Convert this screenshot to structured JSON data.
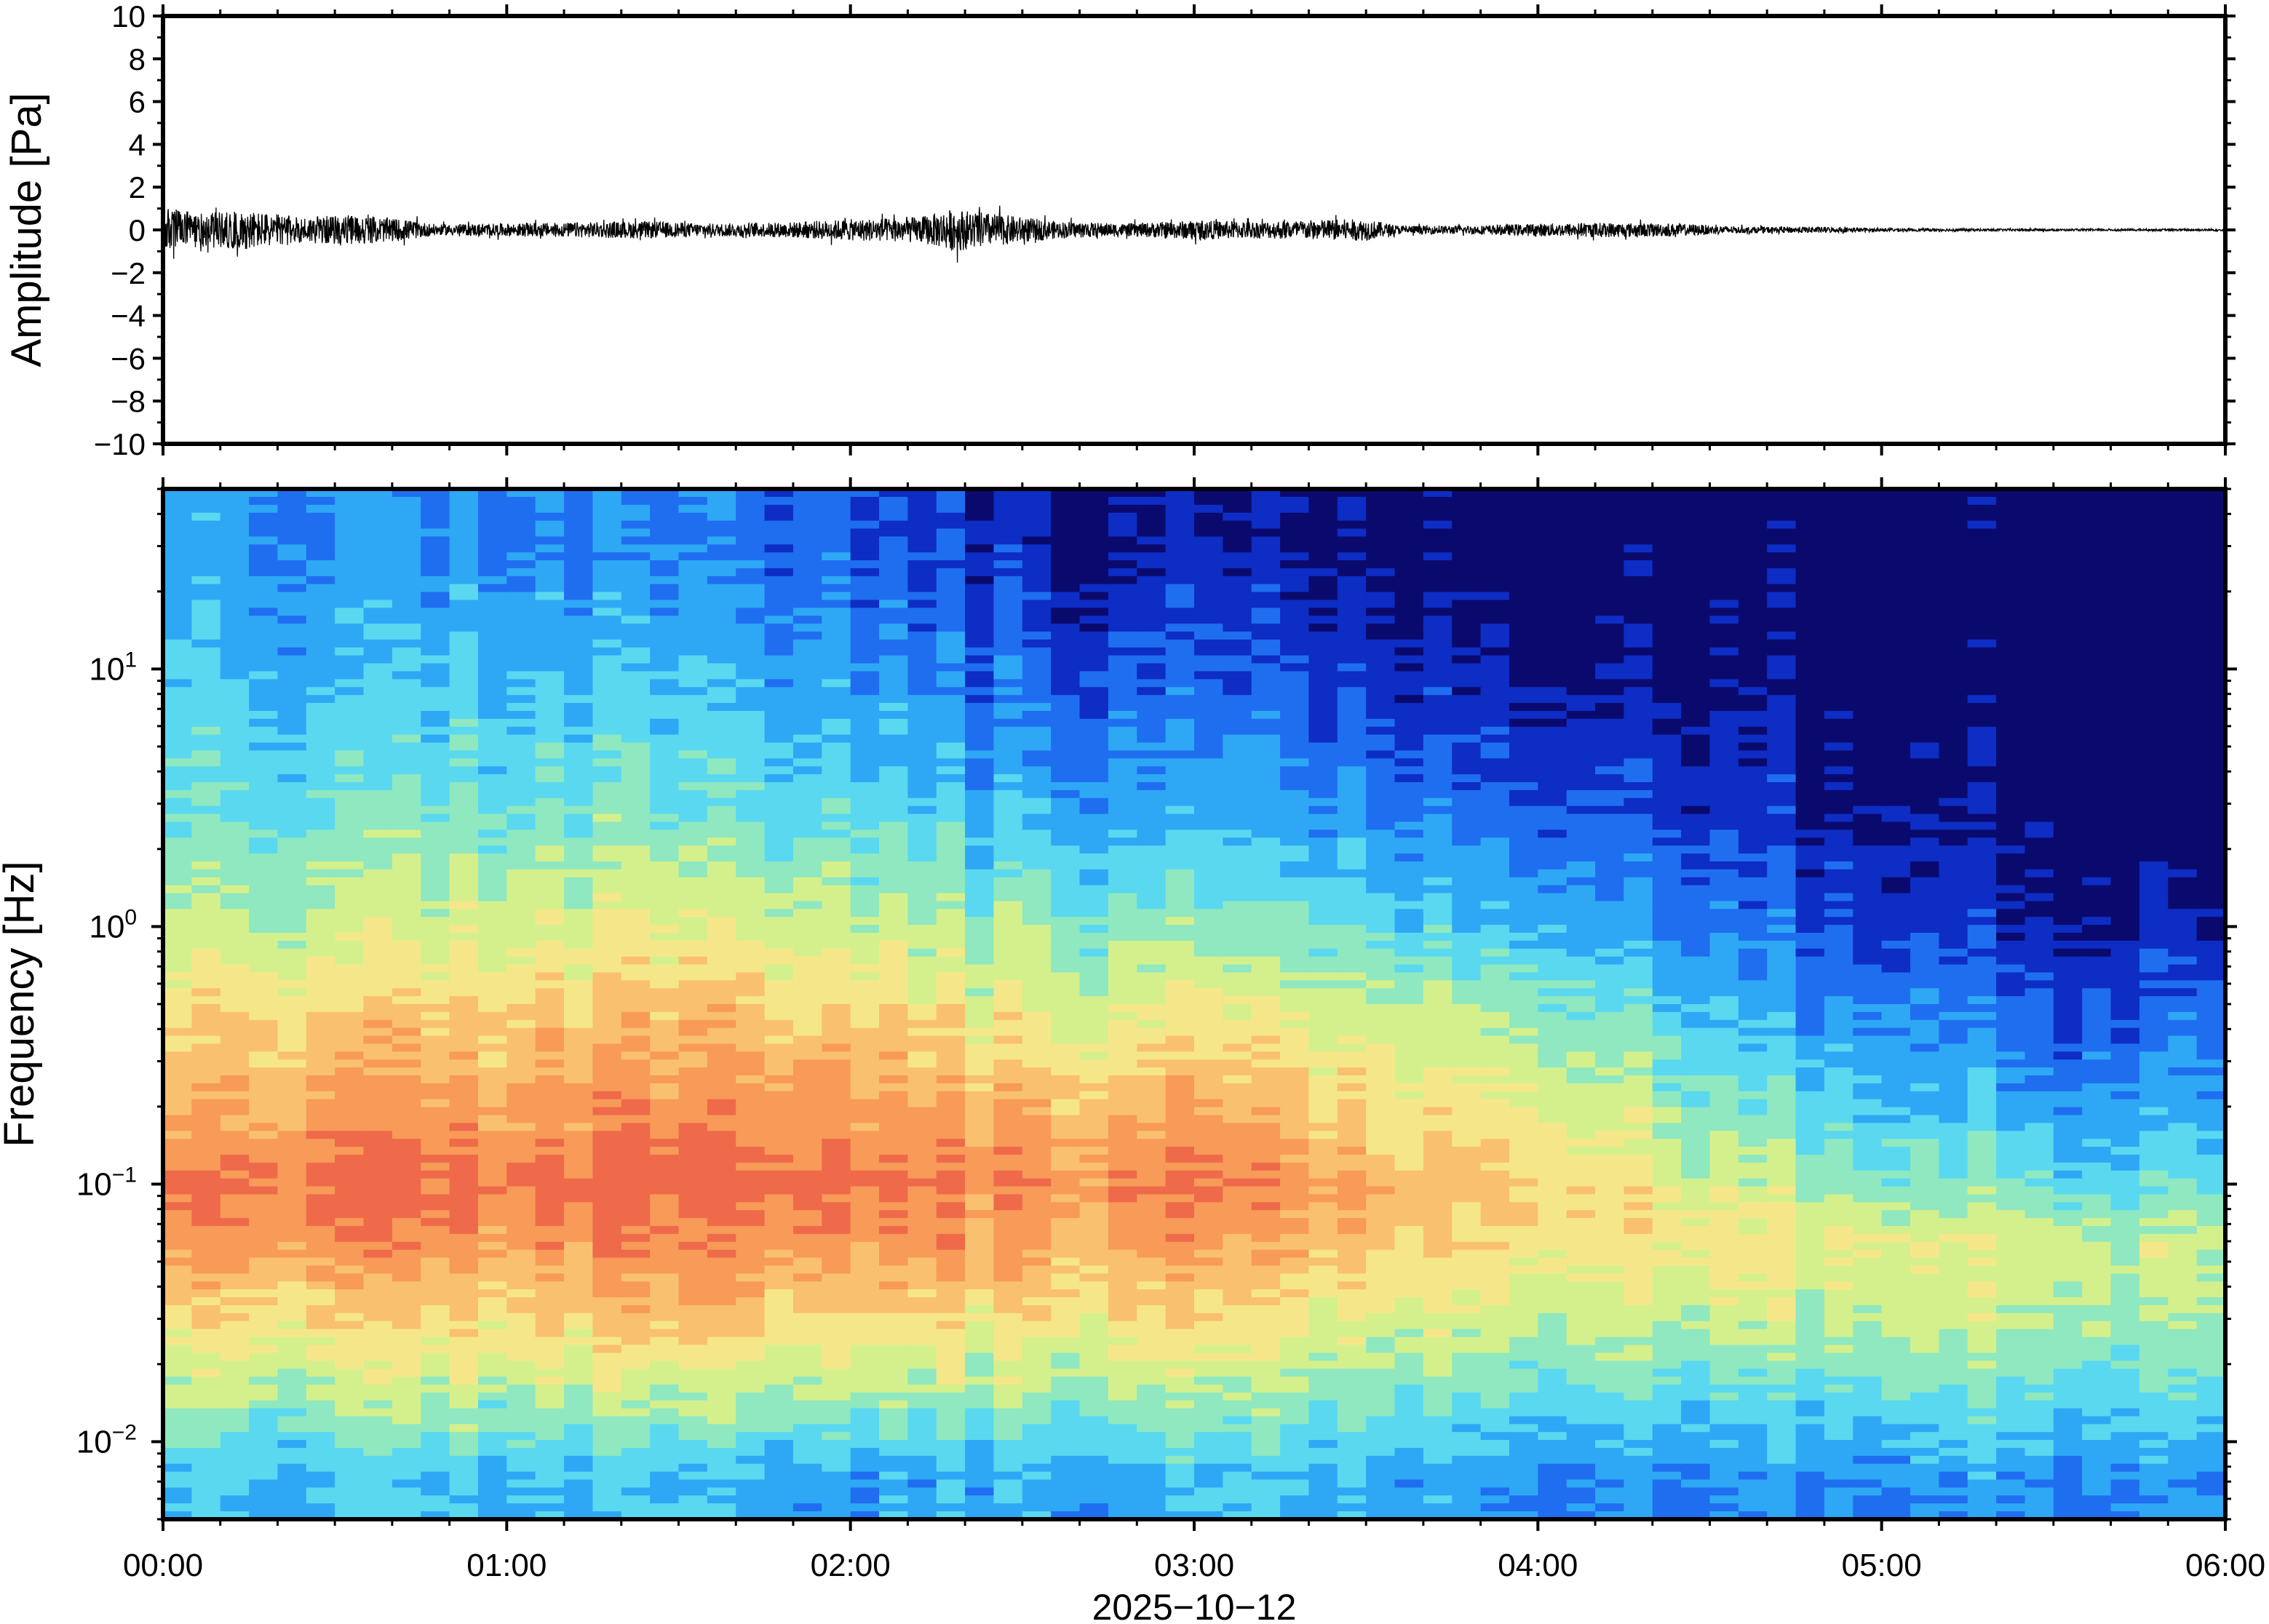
{
  "chart_data": [
    {
      "type": "line",
      "title": "",
      "xlabel": "",
      "ylabel": "Amplitude [Pa]",
      "ylim": [
        -10,
        10
      ],
      "yticks": [
        10,
        8,
        6,
        4,
        2,
        0,
        -2,
        -4,
        -6,
        -8,
        -10
      ],
      "ytick_labels": [
        "10",
        "8",
        "6",
        "4",
        "2",
        "0",
        "−2",
        "−4",
        "−6",
        "−8",
        "−10"
      ],
      "xlim_hours": [
        0,
        6
      ],
      "grid": false,
      "series": [
        {
          "color": "#000000",
          "envelope_hours": [
            0,
            0.1,
            0.25,
            0.4,
            0.55,
            0.7,
            0.8,
            1.0,
            1.2,
            1.4,
            1.6,
            1.8,
            2.0,
            2.2,
            2.3,
            2.4,
            2.5,
            2.6,
            2.8,
            3.0,
            3.2,
            3.4,
            3.5,
            3.6,
            3.8,
            4.0,
            4.2,
            4.4,
            4.6,
            4.8,
            5.0,
            5.5,
            6.0
          ],
          "envelope_amplitude_pa": [
            1.1,
            0.8,
            0.9,
            0.6,
            0.7,
            0.5,
            0.25,
            0.3,
            0.35,
            0.4,
            0.3,
            0.35,
            0.5,
            0.6,
            1.0,
            0.8,
            0.6,
            0.4,
            0.3,
            0.45,
            0.4,
            0.5,
            0.5,
            0.2,
            0.2,
            0.3,
            0.35,
            0.3,
            0.15,
            0.15,
            0.08,
            0.05,
            0.05
          ]
        }
      ]
    },
    {
      "type": "heatmap",
      "title": "",
      "xlabel": "2025−10−12",
      "ylabel": "Frequency [Hz]",
      "y_scale": "log",
      "ylim": [
        0.005,
        50
      ],
      "yticks": [
        0.01,
        0.1,
        1,
        10
      ],
      "ytick_labels": [
        {
          "base": "10",
          "exp": "−2"
        },
        {
          "base": "10",
          "exp": "−1"
        },
        {
          "base": "10",
          "exp": "0"
        },
        {
          "base": "10",
          "exp": "1"
        }
      ],
      "xlim_hours": [
        0,
        6
      ],
      "xticks_hours": [
        0,
        1,
        2,
        3,
        4,
        5,
        6
      ],
      "xtick_labels": [
        "00:00",
        "01:00",
        "02:00",
        "03:00",
        "04:00",
        "05:00",
        "06:00"
      ],
      "colormap": "jet",
      "colors": [
        "#0a0a6e",
        "#0d2dc4",
        "#1f6ef0",
        "#2ea8f5",
        "#5ad8f0",
        "#8fe8c0",
        "#d4f08c",
        "#f6e68a",
        "#f9c070",
        "#f89a58",
        "#ee6a4a"
      ],
      "bands_hz": [
        0.007,
        0.015,
        0.03,
        0.06,
        0.1,
        0.2,
        0.5,
        1.0,
        3.0,
        10.0,
        30.0
      ],
      "power_levels": [
        [
          0.38,
          0.55,
          0.7,
          0.86,
          0.93,
          0.8,
          0.7,
          0.57,
          0.46,
          0.4,
          0.34
        ],
        [
          0.36,
          0.54,
          0.7,
          0.86,
          0.94,
          0.84,
          0.71,
          0.57,
          0.44,
          0.34,
          0.27
        ],
        [
          0.36,
          0.55,
          0.72,
          0.87,
          0.94,
          0.84,
          0.73,
          0.61,
          0.46,
          0.37,
          0.27
        ],
        [
          0.33,
          0.54,
          0.74,
          0.88,
          0.95,
          0.86,
          0.74,
          0.61,
          0.43,
          0.33,
          0.24
        ],
        [
          0.3,
          0.52,
          0.72,
          0.86,
          0.93,
          0.84,
          0.72,
          0.58,
          0.41,
          0.29,
          0.2
        ],
        [
          0.33,
          0.52,
          0.7,
          0.82,
          0.88,
          0.78,
          0.62,
          0.5,
          0.33,
          0.2,
          0.1
        ],
        [
          0.34,
          0.52,
          0.7,
          0.84,
          0.9,
          0.8,
          0.62,
          0.48,
          0.3,
          0.18,
          0.08
        ],
        [
          0.32,
          0.48,
          0.62,
          0.74,
          0.8,
          0.7,
          0.56,
          0.42,
          0.25,
          0.13,
          0.05
        ],
        [
          0.3,
          0.46,
          0.6,
          0.72,
          0.76,
          0.68,
          0.52,
          0.38,
          0.22,
          0.1,
          0.04
        ],
        [
          0.26,
          0.42,
          0.56,
          0.68,
          0.6,
          0.48,
          0.35,
          0.24,
          0.14,
          0.06,
          0.02
        ],
        [
          0.28,
          0.44,
          0.58,
          0.64,
          0.5,
          0.38,
          0.27,
          0.16,
          0.08,
          0.04,
          0.02
        ],
        [
          0.28,
          0.44,
          0.56,
          0.6,
          0.44,
          0.3,
          0.2,
          0.1,
          0.04,
          0.02,
          0.01
        ],
        [
          0.3,
          0.44,
          0.56,
          0.6,
          0.46,
          0.34,
          0.24,
          0.12,
          0.04,
          0.03,
          0.02
        ]
      ],
      "power_times_hours": [
        0,
        0.5,
        1.0,
        1.5,
        2.0,
        2.5,
        3.0,
        3.5,
        4.0,
        4.5,
        5.0,
        5.5,
        6.0
      ]
    }
  ]
}
